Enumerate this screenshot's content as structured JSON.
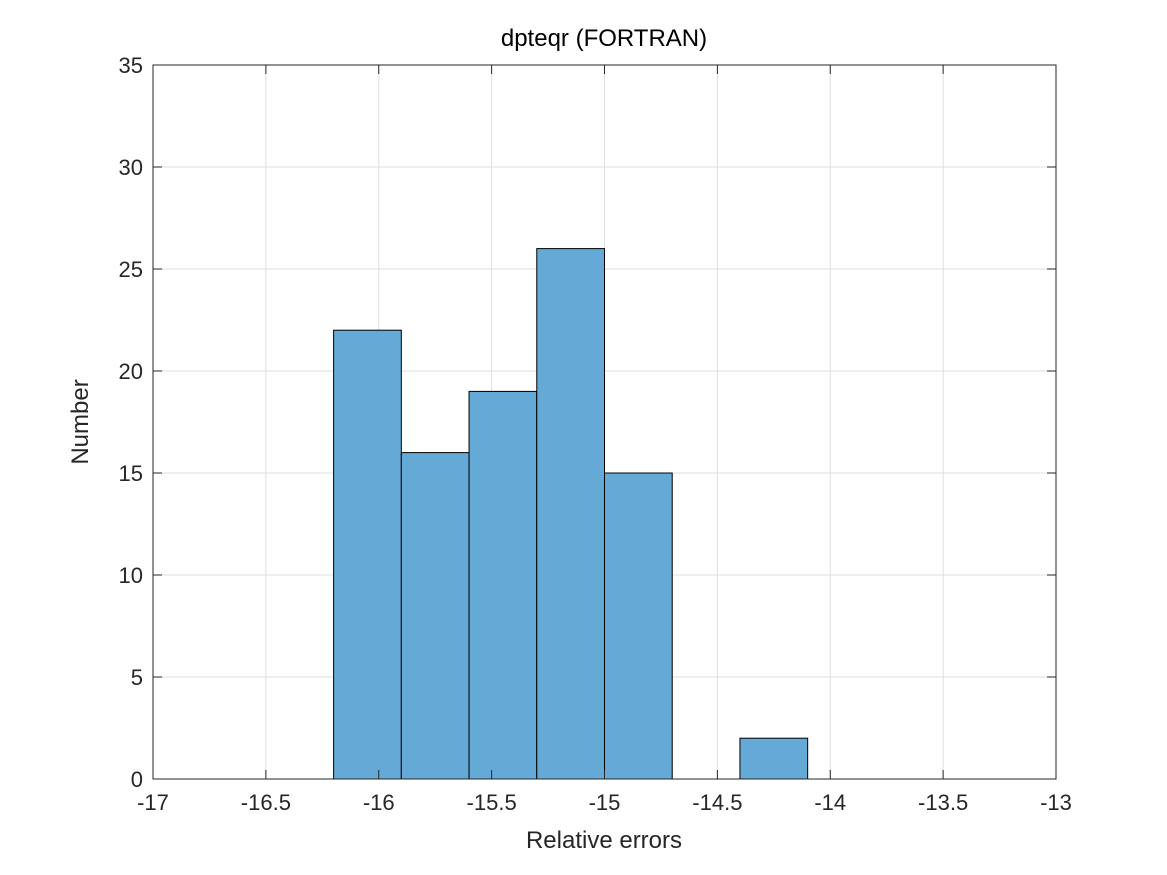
{
  "chart_data": {
    "type": "bar",
    "title": "dpteqr (FORTRAN)",
    "xlabel": "Relative errors",
    "ylabel": "Number",
    "xlim": [
      -17,
      -13
    ],
    "ylim": [
      0,
      35
    ],
    "xticks": [
      -17,
      -16.5,
      -16,
      -15.5,
      -15,
      -14.5,
      -14,
      -13.5,
      -13
    ],
    "xtick_labels": [
      "-17",
      "-16.5",
      "-16",
      "-15.5",
      "-15",
      "-14.5",
      "-14",
      "-13.5",
      "-13"
    ],
    "yticks": [
      0,
      5,
      10,
      15,
      20,
      25,
      30,
      35
    ],
    "ytick_labels": [
      "0",
      "5",
      "10",
      "15",
      "20",
      "25",
      "30",
      "35"
    ],
    "grid": true,
    "bin_edges": [
      -16.2,
      -15.9,
      -15.6,
      -15.3,
      -15.0,
      -14.7,
      -14.4,
      -14.1
    ],
    "values": [
      22,
      16,
      19,
      26,
      15,
      0,
      2
    ],
    "colors": {
      "bar_fill": "#65a9d7",
      "bar_edge": "#000000",
      "axis": "#262626",
      "grid": "#dfdfdf"
    }
  }
}
